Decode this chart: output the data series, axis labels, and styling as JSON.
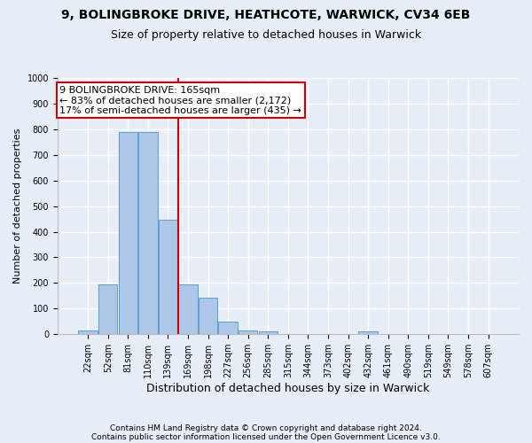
{
  "title1": "9, BOLINGBROKE DRIVE, HEATHCOTE, WARWICK, CV34 6EB",
  "title2": "Size of property relative to detached houses in Warwick",
  "xlabel": "Distribution of detached houses by size in Warwick",
  "ylabel": "Number of detached properties",
  "categories": [
    "22sqm",
    "52sqm",
    "81sqm",
    "110sqm",
    "139sqm",
    "169sqm",
    "198sqm",
    "227sqm",
    "256sqm",
    "285sqm",
    "315sqm",
    "344sqm",
    "373sqm",
    "402sqm",
    "432sqm",
    "461sqm",
    "490sqm",
    "519sqm",
    "549sqm",
    "578sqm",
    "607sqm"
  ],
  "values": [
    15,
    193,
    790,
    790,
    447,
    193,
    143,
    50,
    13,
    10,
    0,
    0,
    0,
    0,
    10,
    0,
    0,
    0,
    0,
    0,
    0
  ],
  "bar_color": "#aec6e8",
  "bar_edge_color": "#5a9fd4",
  "vline_x": 4.5,
  "vline_color": "#cc0000",
  "annotation_line1": "9 BOLINGBROKE DRIVE: 165sqm",
  "annotation_line2": "← 83% of detached houses are smaller (2,172)",
  "annotation_line3": "17% of semi-detached houses are larger (435) →",
  "annotation_box_color": "#ffffff",
  "annotation_box_edge_color": "#cc0000",
  "ylim": [
    0,
    1000
  ],
  "yticks": [
    0,
    100,
    200,
    300,
    400,
    500,
    600,
    700,
    800,
    900,
    1000
  ],
  "footer1": "Contains HM Land Registry data © Crown copyright and database right 2024.",
  "footer2": "Contains public sector information licensed under the Open Government Licence v3.0.",
  "bg_color": "#e8eef8",
  "grid_color": "#ffffff",
  "title1_fontsize": 10,
  "title2_fontsize": 9,
  "annotation_fontsize": 8,
  "xlabel_fontsize": 9,
  "ylabel_fontsize": 8,
  "tick_fontsize": 7,
  "footer_fontsize": 6.5
}
